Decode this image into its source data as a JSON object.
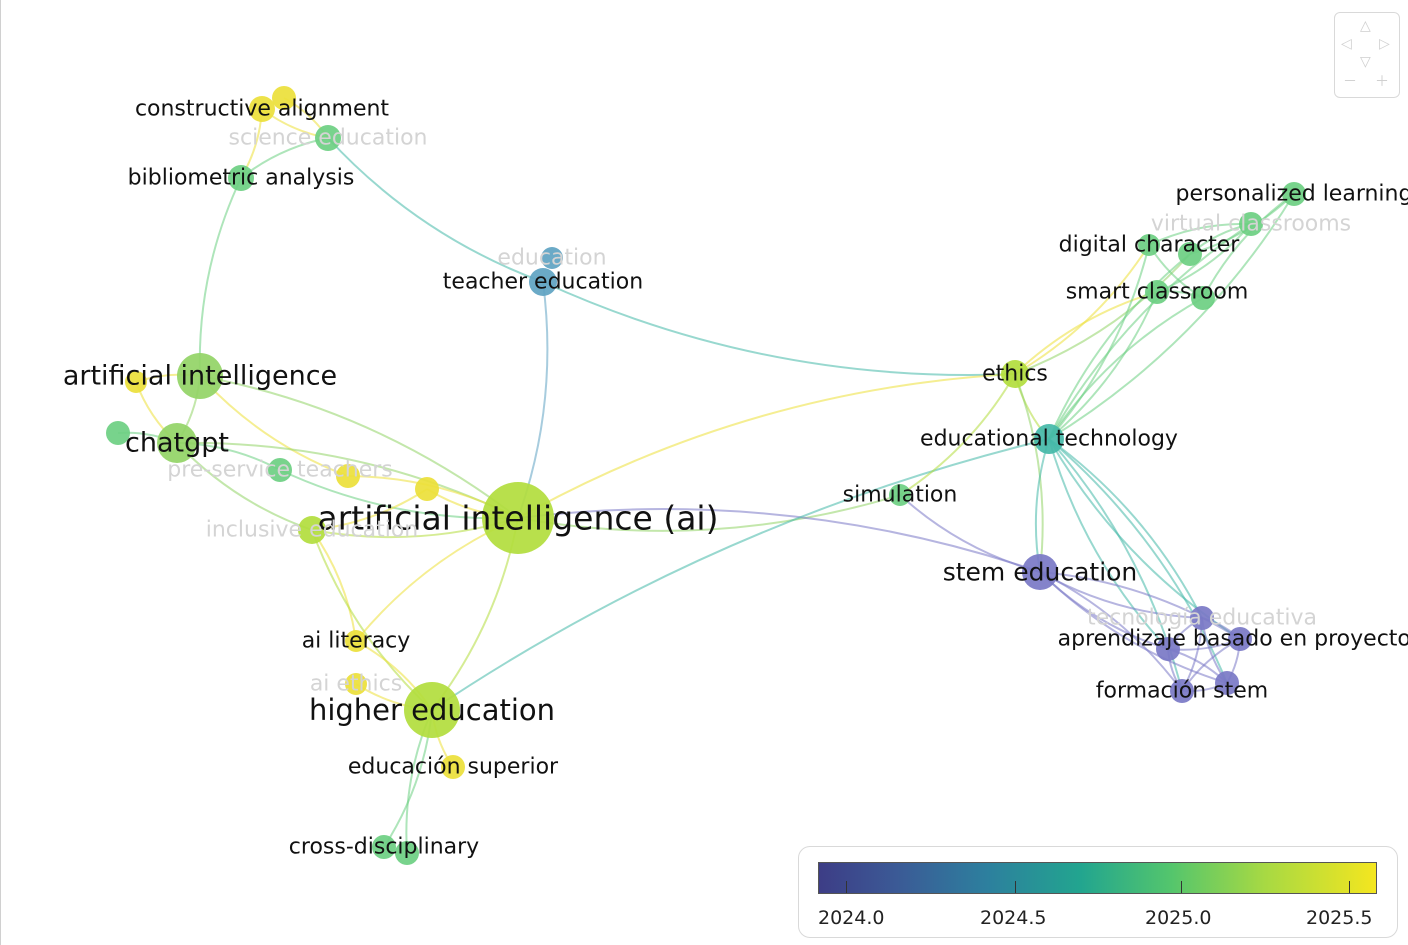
{
  "diagram": {
    "colors": {
      "purple": "#7a78c6",
      "blue": "#5ea3c2",
      "teal": "#44b8a8",
      "green": "#6ccf82",
      "lightgreen": "#92d466",
      "limegreen": "#b2dd3d",
      "yellow": "#ece039"
    },
    "nodes": [
      {
        "id": "ai_paren",
        "label": "artificial intelligence (ai)",
        "color": "limegreen"
      },
      {
        "id": "ai",
        "label": "artificial intelligence",
        "color": "lightgreen"
      },
      {
        "id": "chatgpt",
        "label": "chatgpt",
        "color": "lightgreen"
      },
      {
        "id": "higher",
        "label": "higher education",
        "color": "limegreen"
      },
      {
        "id": "constructive",
        "label": "constructive alignment",
        "color": "yellow"
      },
      {
        "id": "constructive2",
        "label": "",
        "color": "yellow"
      },
      {
        "id": "science",
        "label": "science education",
        "color": "green",
        "faint": true
      },
      {
        "id": "biblio",
        "label": "bibliometric analysis",
        "color": "green"
      },
      {
        "id": "education",
        "label": "education",
        "color": "blue",
        "faint": true
      },
      {
        "id": "teacher",
        "label": "teacher education",
        "color": "blue"
      },
      {
        "id": "y_ai_small",
        "label": "",
        "color": "yellow"
      },
      {
        "id": "g_small",
        "label": "",
        "color": "green"
      },
      {
        "id": "preservice",
        "label": "pre-service teachers",
        "color": "green",
        "faint": true
      },
      {
        "id": "y1",
        "label": "",
        "color": "yellow"
      },
      {
        "id": "y2",
        "label": "",
        "color": "yellow"
      },
      {
        "id": "inclusive",
        "label": "inclusive education",
        "color": "limegreen",
        "faint": true
      },
      {
        "id": "ailit",
        "label": "ai literacy",
        "color": "yellow"
      },
      {
        "id": "aiethics",
        "label": "ai ethics",
        "color": "yellow",
        "faint": true
      },
      {
        "id": "edsup",
        "label": "educación superior",
        "color": "yellow"
      },
      {
        "id": "crossd",
        "label": "cross-disciplinary",
        "color": "green"
      },
      {
        "id": "crossd2",
        "label": "",
        "color": "green"
      },
      {
        "id": "personal",
        "label": "personalized learning",
        "color": "green"
      },
      {
        "id": "virtual",
        "label": "virtual classrooms",
        "color": "green",
        "faint": true
      },
      {
        "id": "digchar",
        "label": "digital character",
        "color": "green"
      },
      {
        "id": "dig2",
        "label": "",
        "color": "green"
      },
      {
        "id": "smart",
        "label": "smart classroom",
        "color": "green"
      },
      {
        "id": "smart2",
        "label": "",
        "color": "green"
      },
      {
        "id": "ethics",
        "label": "ethics",
        "color": "limegreen"
      },
      {
        "id": "edtech",
        "label": "educational technology",
        "color": "teal"
      },
      {
        "id": "simulation",
        "label": "simulation",
        "color": "green"
      },
      {
        "id": "stem",
        "label": "stem education",
        "color": "purple"
      },
      {
        "id": "tecno",
        "label": "tecnología educativa",
        "color": "purple",
        "faint": true
      },
      {
        "id": "abp",
        "label": "aprendizaje basado en proyectos",
        "color": "purple"
      },
      {
        "id": "p3",
        "label": "",
        "color": "purple"
      },
      {
        "id": "fstem",
        "label": "formación stem",
        "color": "purple"
      },
      {
        "id": "p5",
        "label": "",
        "color": "purple"
      }
    ],
    "edges": [
      [
        "constructive",
        "biblio",
        "yellow"
      ],
      [
        "constructive",
        "science",
        "yellow"
      ],
      [
        "constructive2",
        "science",
        "yellow"
      ],
      [
        "biblio",
        "ai",
        "green"
      ],
      [
        "biblio",
        "science",
        "green"
      ],
      [
        "science",
        "teacher",
        "teal"
      ],
      [
        "teacher",
        "ai_paren",
        "blue"
      ],
      [
        "teacher",
        "ethics",
        "teal"
      ],
      [
        "ai",
        "chatgpt",
        "lightgreen"
      ],
      [
        "ai",
        "y_ai_small",
        "yellow"
      ],
      [
        "ai",
        "ai_paren",
        "lightgreen"
      ],
      [
        "ai",
        "y1",
        "yellow"
      ],
      [
        "chatgpt",
        "ai_paren",
        "lightgreen"
      ],
      [
        "chatgpt",
        "g_small",
        "green"
      ],
      [
        "chatgpt",
        "preservice",
        "green"
      ],
      [
        "chatgpt",
        "inclusive",
        "lightgreen"
      ],
      [
        "chatgpt",
        "y_ai_small",
        "yellow"
      ],
      [
        "preservice",
        "ai_paren",
        "green"
      ],
      [
        "y1",
        "ai_paren",
        "yellow"
      ],
      [
        "y2",
        "ai_paren",
        "yellow"
      ],
      [
        "y2",
        "inclusive",
        "yellow"
      ],
      [
        "inclusive",
        "ai_paren",
        "limegreen"
      ],
      [
        "inclusive",
        "ailit",
        "yellow"
      ],
      [
        "inclusive",
        "higher",
        "limegreen"
      ],
      [
        "ai_paren",
        "higher",
        "limegreen"
      ],
      [
        "ai_paren",
        "ailit",
        "yellow"
      ],
      [
        "ai_paren",
        "ethics",
        "yellow"
      ],
      [
        "ai_paren",
        "simulation",
        "lightgreen"
      ],
      [
        "ai_paren",
        "stem",
        "purple"
      ],
      [
        "higher",
        "ailit",
        "yellow"
      ],
      [
        "higher",
        "aiethics",
        "yellow"
      ],
      [
        "higher",
        "edsup",
        "yellow"
      ],
      [
        "higher",
        "crossd",
        "green"
      ],
      [
        "higher",
        "crossd2",
        "green"
      ],
      [
        "higher",
        "edtech",
        "teal"
      ],
      [
        "ethics",
        "digchar",
        "yellow"
      ],
      [
        "ethics",
        "smart",
        "yellow"
      ],
      [
        "ethics",
        "dig2",
        "lightgreen"
      ],
      [
        "ethics",
        "simulation",
        "limegreen"
      ],
      [
        "ethics",
        "edtech",
        "limegreen"
      ],
      [
        "ethics",
        "stem",
        "lightgreen"
      ],
      [
        "edtech",
        "personal",
        "green"
      ],
      [
        "edtech",
        "virtual",
        "green"
      ],
      [
        "edtech",
        "digchar",
        "green"
      ],
      [
        "edtech",
        "dig2",
        "green"
      ],
      [
        "edtech",
        "smart",
        "green"
      ],
      [
        "edtech",
        "smart2",
        "green"
      ],
      [
        "edtech",
        "stem",
        "teal"
      ],
      [
        "edtech",
        "tecno",
        "teal"
      ],
      [
        "edtech",
        "abp",
        "teal"
      ],
      [
        "edtech",
        "fstem",
        "teal"
      ],
      [
        "edtech",
        "p3",
        "teal"
      ],
      [
        "edtech",
        "p5",
        "teal"
      ],
      [
        "simulation",
        "stem",
        "purple"
      ],
      [
        "digchar",
        "virtual",
        "green"
      ],
      [
        "digchar",
        "smart2",
        "green"
      ],
      [
        "dig2",
        "virtual",
        "green"
      ],
      [
        "dig2",
        "personal",
        "green"
      ],
      [
        "smart",
        "smart2",
        "green"
      ],
      [
        "smart",
        "virtual",
        "green"
      ],
      [
        "smart2",
        "personal",
        "green"
      ],
      [
        "stem",
        "tecno",
        "purple"
      ],
      [
        "stem",
        "abp",
        "purple"
      ],
      [
        "stem",
        "p3",
        "purple"
      ],
      [
        "stem",
        "fstem",
        "purple"
      ],
      [
        "stem",
        "p5",
        "purple"
      ],
      [
        "tecno",
        "abp",
        "purple"
      ],
      [
        "tecno",
        "p3",
        "purple"
      ],
      [
        "tecno",
        "fstem",
        "purple"
      ],
      [
        "tecno",
        "p5",
        "purple"
      ],
      [
        "abp",
        "p3",
        "purple"
      ],
      [
        "abp",
        "fstem",
        "purple"
      ],
      [
        "abp",
        "p5",
        "purple"
      ],
      [
        "p3",
        "fstem",
        "purple"
      ],
      [
        "p3",
        "p5",
        "purple"
      ],
      [
        "fstem",
        "p5",
        "purple"
      ]
    ]
  },
  "legend": {
    "ticks": [
      "2024.0",
      "2024.5",
      "2025.0",
      "2025.5"
    ]
  },
  "navigation": {
    "up": "△",
    "left": "◁",
    "right": "▷",
    "down": "▽",
    "zoom_out": "－",
    "zoom_in": "＋"
  }
}
